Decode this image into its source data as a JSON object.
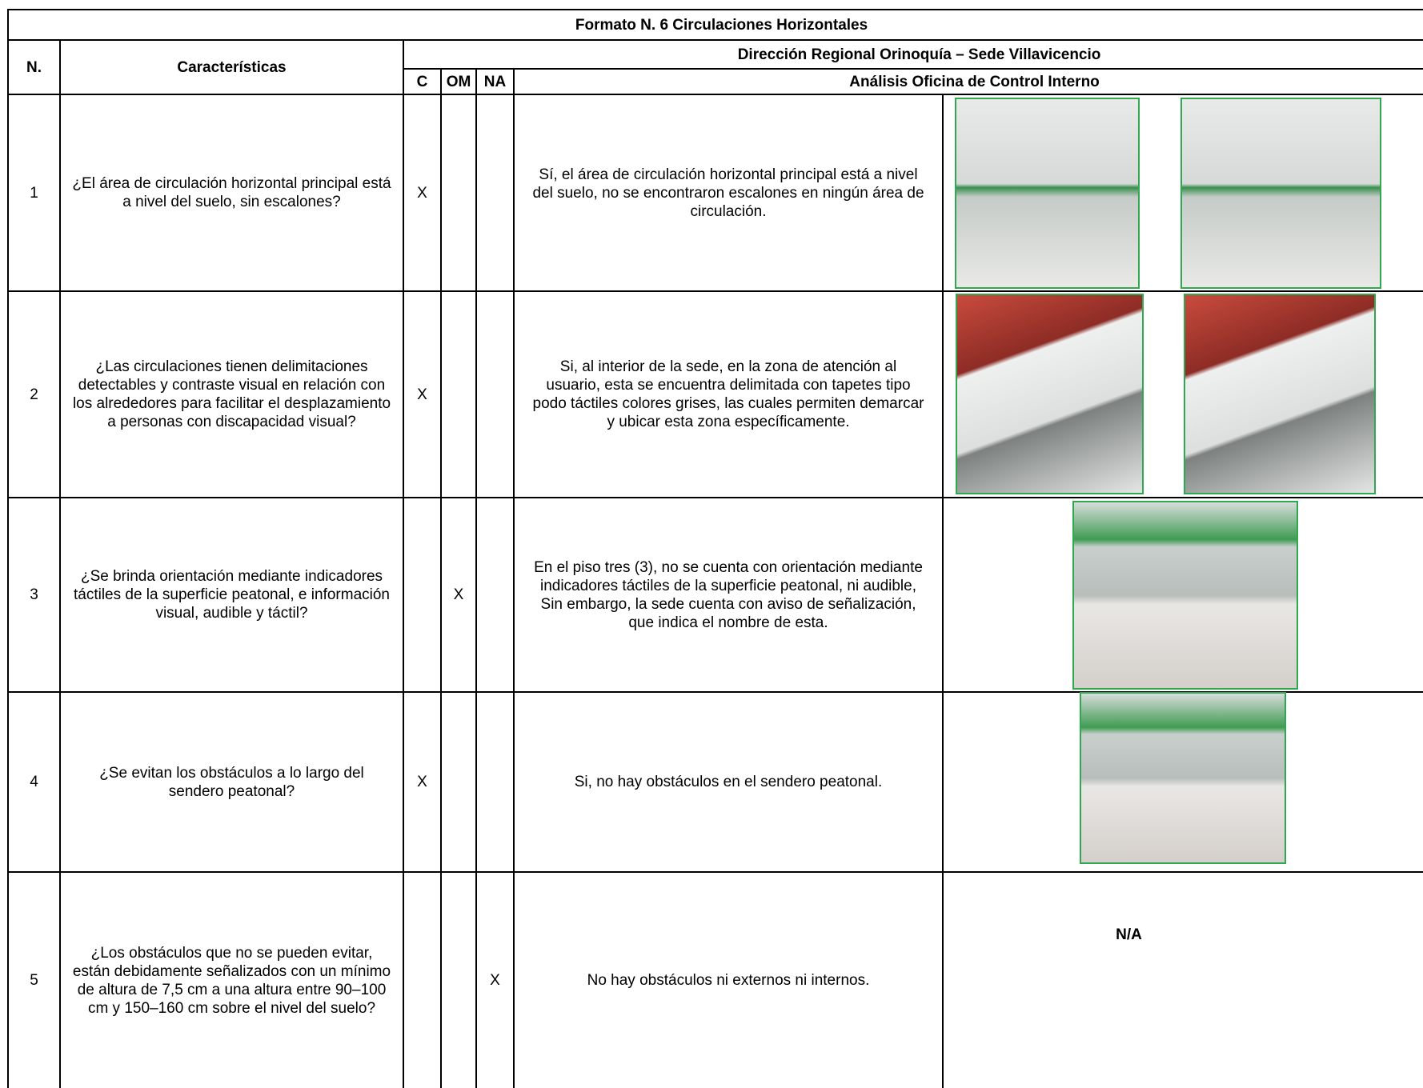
{
  "header": {
    "title": "Formato N. 6 Circulaciones Horizontales",
    "n": "N.",
    "characteristics": "Características",
    "office": "Dirección Regional Orinoquía – Sede Villavicencio",
    "c": "C",
    "om": "OM",
    "na": "NA",
    "analysis": "Análisis Oficina de Control Interno"
  },
  "rows": [
    {
      "n": "1",
      "question": "¿El área de circulación horizontal principal  está a nivel del suelo, sin escalones?",
      "c": "X",
      "analysis": "Sí, el área de circulación horizontal principal está a nivel del suelo, no se encontraron escalones en ningún área de circulación."
    },
    {
      "n": "2",
      "question": "¿Las circulaciones tienen delimitaciones detectables y  contraste  visual  en relación  con los alrededores para facilitar el  desplazamiento a personas con discapacidad  visual?",
      "c": "X",
      "analysis": "Si, al interior de la sede, en la zona de atención al usuario, esta se encuentra delimitada con tapetes tipo podo táctiles colores grises, las cuales permiten demarcar y ubicar esta zona específicamente."
    },
    {
      "n": "3",
      "question": "¿Se brinda orientación mediante indicadores táctiles de la superficie peatonal, e información visual, audible y táctil?",
      "om": "X",
      "analysis": "En el piso tres (3), no se cuenta con orientación mediante indicadores táctiles de la superficie peatonal, ni audible, Sin embargo, la sede cuenta con aviso de señalización, que indica el nombre de esta."
    },
    {
      "n": "4",
      "question": "¿Se evitan los obstáculos a lo largo del sendero peatonal?",
      "c": "X",
      "analysis": "Si, no hay obstáculos en el sendero peatonal."
    },
    {
      "n": "5",
      "question": "¿Los obstáculos que no se pueden evitar, están debidamente señalizados con un mínimo de altura de 7,5 cm a una altura entre 90–100 cm y 150–160 cm sobre el nivel del suelo?",
      "na": "X",
      "analysis": "No hay obstáculos ni externos ni internos.",
      "photo_note": "N/A"
    }
  ]
}
